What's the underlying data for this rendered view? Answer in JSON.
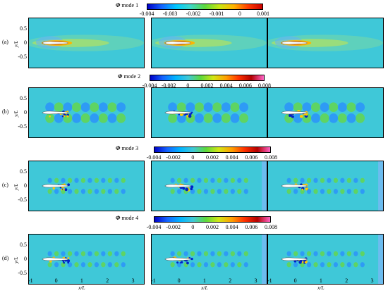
{
  "rows": [
    {
      "label": "(a)",
      "title_symbol": "Φ",
      "title_text": "mode 1",
      "colorbar_ticks": [
        "-0.004",
        "-0.003",
        "-0.002",
        "-0.001",
        "0",
        "0.001"
      ],
      "y_ticks": [
        "0.5",
        "0",
        "-0.5"
      ],
      "y_label": "y/L"
    },
    {
      "label": "(b)",
      "title_symbol": "Φ",
      "title_text": "mode 2",
      "colorbar_ticks": [
        "-0.004",
        "-0.002",
        "0",
        "0.002",
        "0.004",
        "0.006",
        "0.008"
      ],
      "y_ticks": [
        "0.5",
        "0",
        "-0.5"
      ],
      "y_label": "y/L"
    },
    {
      "label": "(c)",
      "title_symbol": "Φ",
      "title_text": "mode 3",
      "colorbar_ticks": [
        "-0.004",
        "-0.002",
        "0",
        "0.002",
        "0.004",
        "0.006",
        "0.008"
      ],
      "y_ticks": [
        "0.5",
        "0",
        "-0.5"
      ],
      "y_label": "y/L"
    },
    {
      "label": "(d)",
      "title_symbol": "Φ",
      "title_text": "mode 4",
      "colorbar_ticks": [
        "-0.004",
        "-0.002",
        "0",
        "0.002",
        "0.004",
        "0.006",
        "0.008"
      ],
      "y_ticks": [
        "0.5",
        "0",
        "-0.5"
      ],
      "y_label": "y/L"
    }
  ],
  "x_ticks": [
    "-1",
    "0",
    "1",
    "2",
    "3"
  ],
  "x_label": "x/L",
  "colors": {
    "field_background": "#3fc8d8",
    "colormap_mode1": [
      "#0000c8",
      "#1464ff",
      "#00c8ff",
      "#3fd8c8",
      "#5cd83c",
      "#c8e614",
      "#ffb400",
      "#ff3c00",
      "#c80000"
    ],
    "colormap_modes": [
      "#0000c8",
      "#1464ff",
      "#00b4ff",
      "#3fc8d8",
      "#5cd83c",
      "#d2e614",
      "#ffa000",
      "#ff3200",
      "#b40000",
      "#ff64c8"
    ]
  }
}
